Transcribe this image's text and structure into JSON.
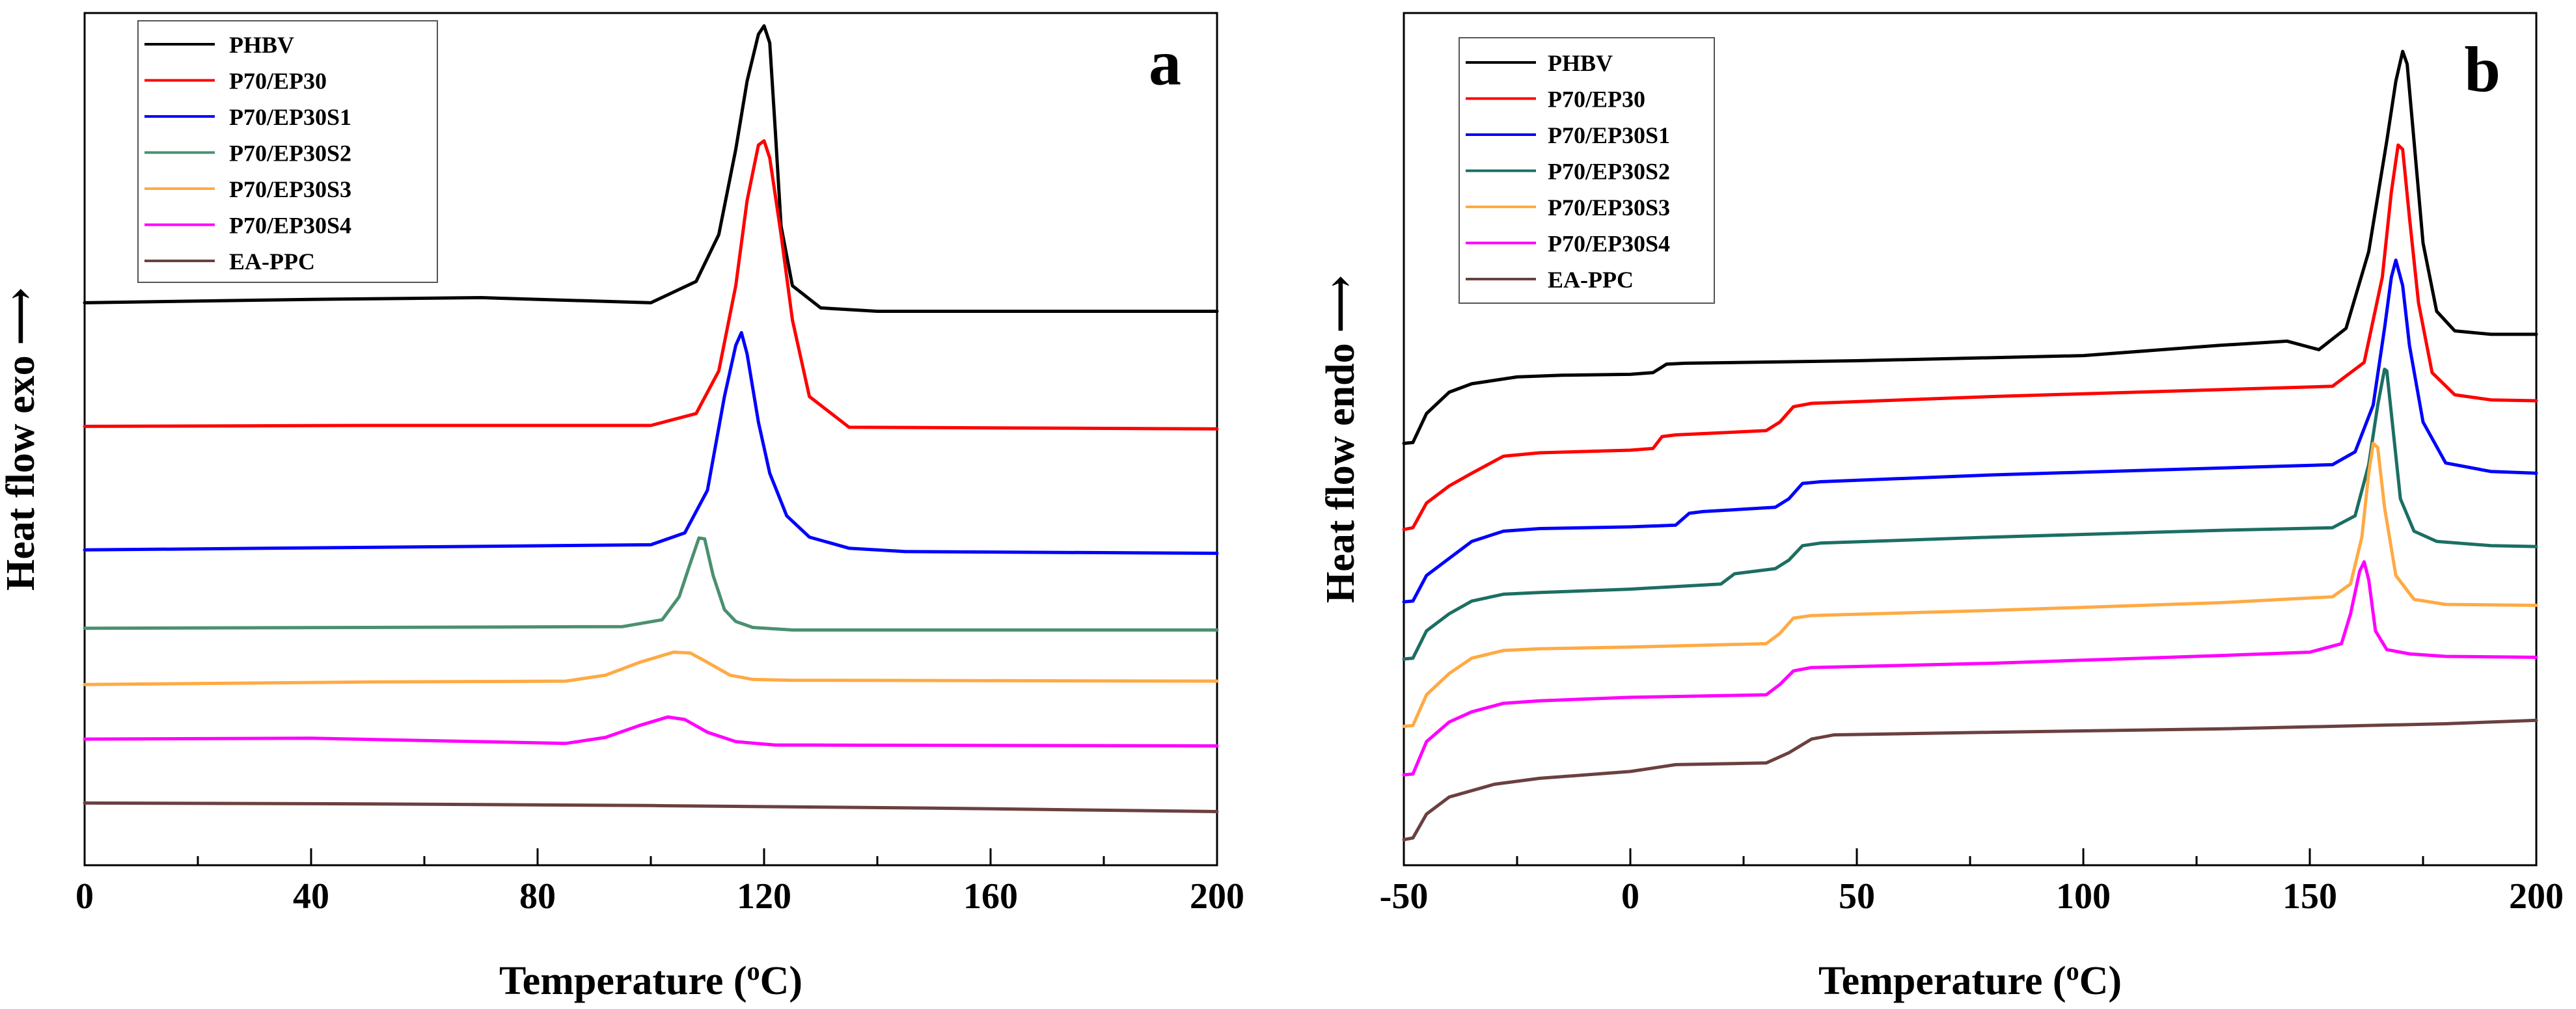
{
  "chart_data": [
    {
      "panel": "a",
      "type": "line",
      "panel_label": "a",
      "xlabel": "Temperature (",
      "xlabel_sup": "o",
      "xlabel_end": "C)",
      "ylabel": "Heat flow exo ⟶",
      "xlim": [
        0,
        200
      ],
      "xticks": [
        "0",
        "40",
        "80",
        "120",
        "160",
        "200"
      ],
      "xtick_values": [
        0,
        40,
        80,
        120,
        160,
        200
      ],
      "yaxis_ticks_shown": false,
      "ylim": [
        0,
        100
      ],
      "legend_position": "top-left",
      "series": [
        {
          "name": "PHBV",
          "color": "#000000",
          "x": [
            0,
            40,
            70,
            100,
            108,
            112,
            115,
            117,
            119,
            120,
            121,
            122,
            123,
            125,
            130,
            140,
            160,
            200
          ],
          "y": [
            66.0,
            66.4,
            66.6,
            66.0,
            68.5,
            74,
            84,
            92,
            97.5,
            98.5,
            96.5,
            86,
            75,
            68,
            65.4,
            65.0,
            65.0,
            65.0
          ]
        },
        {
          "name": "P70/EP30",
          "color": "#ff0000",
          "x": [
            0,
            50,
            100,
            108,
            112,
            115,
            117,
            119,
            120,
            121,
            123,
            125,
            128,
            135,
            200
          ],
          "y": [
            51.5,
            51.6,
            51.6,
            53,
            58,
            68,
            78,
            84.5,
            85,
            83,
            74,
            64,
            55,
            51.4,
            51.2
          ]
        },
        {
          "name": "P70/EP30S1",
          "color": "#0000ff",
          "x": [
            0,
            50,
            100,
            106,
            110,
            113,
            115,
            116,
            117,
            119,
            121,
            124,
            128,
            135,
            145,
            200
          ],
          "y": [
            37.0,
            37.3,
            37.6,
            39,
            44,
            55,
            61,
            62.5,
            60,
            52,
            46,
            41,
            38.5,
            37.2,
            36.8,
            36.6
          ]
        },
        {
          "name": "P70/EP30S2",
          "color": "#4a9070",
          "x": [
            0,
            50,
            95,
            102,
            105,
            107,
            108.5,
            109.5,
            111,
            113,
            115,
            118,
            125,
            200
          ],
          "y": [
            27.8,
            27.9,
            28.0,
            28.8,
            31.5,
            35.5,
            38.4,
            38.3,
            34,
            30,
            28.6,
            27.9,
            27.6,
            27.6
          ]
        },
        {
          "name": "P70/EP30S3",
          "color": "#ffaa44",
          "x": [
            0,
            50,
            85,
            92,
            98,
            104,
            107,
            110,
            114,
            118,
            125,
            200
          ],
          "y": [
            21.2,
            21.5,
            21.6,
            22.3,
            23.8,
            25.0,
            24.9,
            23.8,
            22.3,
            21.8,
            21.7,
            21.6
          ]
        },
        {
          "name": "P70/EP30S4",
          "color": "#ff00ff",
          "x": [
            0,
            40,
            85,
            92,
            98,
            103,
            106,
            110,
            115,
            122,
            130,
            200
          ],
          "y": [
            14.8,
            14.9,
            14.3,
            15.0,
            16.4,
            17.4,
            17.1,
            15.6,
            14.5,
            14.1,
            14.1,
            14.0
          ]
        },
        {
          "name": "EA-PPC",
          "color": "#6b4040",
          "x": [
            0,
            50,
            100,
            150,
            200
          ],
          "y": [
            7.3,
            7.2,
            7.0,
            6.7,
            6.3
          ]
        }
      ]
    },
    {
      "panel": "b",
      "type": "line",
      "panel_label": "b",
      "xlabel": "Temperature (",
      "xlabel_sup": "o",
      "xlabel_end": "C)",
      "ylabel": "Heat flow endo ⟶",
      "xlim": [
        -50,
        200
      ],
      "xticks": [
        "-50",
        "0",
        "50",
        "100",
        "150",
        "200"
      ],
      "xtick_values": [
        -50,
        0,
        50,
        100,
        150,
        200
      ],
      "yaxis_ticks_shown": false,
      "ylim": [
        0,
        100
      ],
      "legend_position": "top-left",
      "series": [
        {
          "name": "PHBV",
          "color": "#000000",
          "x": [
            -50,
            -48,
            -45,
            -40,
            -35,
            -25,
            -15,
            0,
            5,
            8,
            12,
            50,
            100,
            130,
            145,
            152,
            158,
            163,
            167,
            169,
            170.5,
            171.5,
            173,
            175,
            178,
            182,
            190,
            200
          ],
          "y": [
            49.5,
            49.6,
            53,
            55.5,
            56.5,
            57.3,
            57.5,
            57.6,
            57.8,
            58.8,
            58.9,
            59.2,
            59.8,
            61.0,
            61.5,
            60.5,
            63,
            72,
            85,
            92,
            95.5,
            94,
            85,
            73,
            65,
            62.7,
            62.3,
            62.3
          ]
        },
        {
          "name": "P70/EP30",
          "color": "#ff0000",
          "x": [
            -50,
            -48,
            -45,
            -40,
            -35,
            -28,
            -20,
            0,
            5,
            7,
            10,
            30,
            33,
            36,
            40,
            80,
            130,
            155,
            162,
            166,
            168,
            169.5,
            170.5,
            172,
            174,
            177,
            182,
            190,
            200
          ],
          "y": [
            39.4,
            39.6,
            42.5,
            44.5,
            46.0,
            48.0,
            48.4,
            48.7,
            48.9,
            50.3,
            50.5,
            51.0,
            52.0,
            53.8,
            54.2,
            55.0,
            55.8,
            56.2,
            59,
            69,
            79,
            84.5,
            84,
            76,
            66,
            57.8,
            55.2,
            54.6,
            54.5
          ]
        },
        {
          "name": "P70/EP30S1",
          "color": "#0000ff",
          "x": [
            -50,
            -48,
            -45,
            -40,
            -35,
            -28,
            -20,
            0,
            10,
            13,
            16,
            32,
            35,
            38,
            42,
            80,
            130,
            155,
            160,
            164,
            166.5,
            168,
            169,
            170.5,
            172,
            175,
            180,
            190,
            200
          ],
          "y": [
            30.9,
            31.0,
            34.0,
            36.0,
            38.0,
            39.2,
            39.5,
            39.7,
            39.9,
            41.3,
            41.5,
            42.0,
            43.0,
            44.8,
            45.0,
            45.8,
            46.6,
            47.0,
            48.5,
            54,
            63,
            69,
            71,
            68,
            61,
            52,
            47.2,
            46.2,
            46.0
          ]
        },
        {
          "name": "P70/EP30S2",
          "color": "#1c6e63",
          "x": [
            -50,
            -48,
            -45,
            -40,
            -35,
            -28,
            -20,
            0,
            20,
            23,
            26,
            32,
            35,
            38,
            42,
            80,
            130,
            155,
            160,
            163,
            165,
            166.5,
            167,
            168,
            170,
            173,
            178,
            190,
            200
          ],
          "y": [
            24.2,
            24.3,
            27.5,
            29.5,
            31.0,
            31.8,
            32.0,
            32.4,
            33.0,
            34.2,
            34.4,
            34.8,
            35.8,
            37.5,
            37.8,
            38.5,
            39.3,
            39.6,
            41,
            47,
            54,
            58.2,
            58.0,
            53,
            43,
            39.2,
            38.0,
            37.5,
            37.4
          ]
        },
        {
          "name": "P70/EP30S3",
          "color": "#ffaa44",
          "x": [
            -50,
            -48,
            -45,
            -40,
            -35,
            -28,
            -20,
            0,
            30,
            33,
            36,
            40,
            80,
            130,
            155,
            159,
            161.5,
            163,
            164,
            165,
            166.5,
            169,
            173,
            180,
            200
          ],
          "y": [
            16.3,
            16.4,
            20.0,
            22.5,
            24.3,
            25.2,
            25.4,
            25.6,
            26.0,
            27.2,
            29.0,
            29.3,
            29.9,
            30.8,
            31.5,
            33,
            38.5,
            46,
            49.5,
            49.0,
            42,
            34,
            31.2,
            30.6,
            30.5
          ]
        },
        {
          "name": "P70/EP30S4",
          "color": "#ff00ff",
          "x": [
            -50,
            -48,
            -45,
            -40,
            -35,
            -28,
            -20,
            0,
            30,
            33,
            36,
            40,
            80,
            130,
            150,
            157,
            159,
            161,
            162,
            163,
            164.5,
            167,
            172,
            180,
            200
          ],
          "y": [
            10.6,
            10.7,
            14.5,
            16.8,
            18.0,
            19.0,
            19.3,
            19.7,
            20.0,
            21.2,
            22.8,
            23.2,
            23.7,
            24.6,
            25.0,
            26,
            29.5,
            34.5,
            35.6,
            33.5,
            27.5,
            25.3,
            24.8,
            24.5,
            24.4
          ]
        },
        {
          "name": "EA-PPC",
          "color": "#6b4040",
          "x": [
            -50,
            -48,
            -45,
            -40,
            -30,
            -20,
            0,
            10,
            30,
            35,
            40,
            45,
            80,
            130,
            180,
            200
          ],
          "y": [
            3.0,
            3.2,
            6.0,
            8.0,
            9.5,
            10.2,
            11.0,
            11.8,
            12.0,
            13.2,
            14.8,
            15.3,
            15.6,
            16.0,
            16.6,
            17.0
          ]
        }
      ]
    }
  ]
}
